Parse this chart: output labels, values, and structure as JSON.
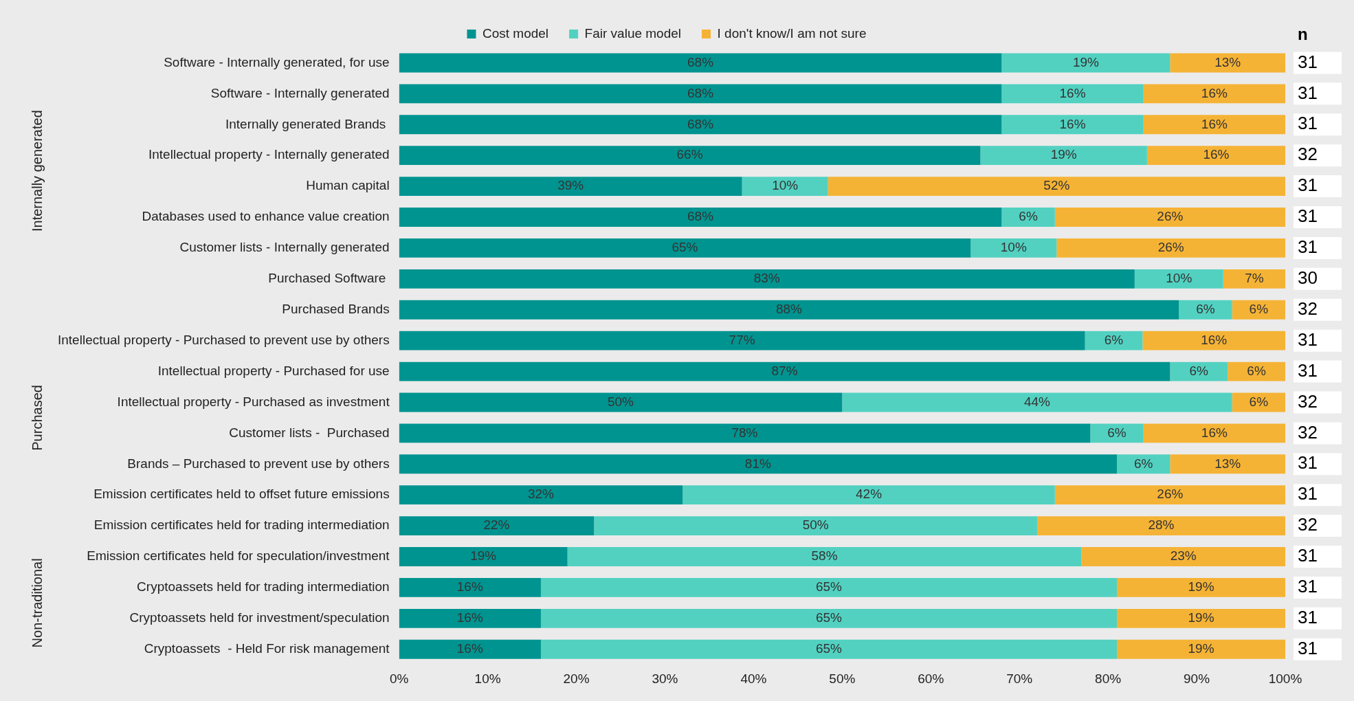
{
  "chart_data": {
    "type": "bar",
    "orientation": "horizontal",
    "stacked": true,
    "legend": "top",
    "grid": false,
    "categories": [
      "Software - Internally generated, for use",
      "Software - Internally generated",
      "Internally generated Brands ",
      "Intellectual property - Internally generated",
      "Human capital",
      "Databases used to enhance value creation",
      "Customer lists - Internally generated",
      "Purchased Software ",
      "Purchased Brands",
      "Intellectual property - Purchased to prevent use by others",
      "Intellectual property - Purchased for use",
      "Intellectual property - Purchased as investment",
      "Customer lists -  Purchased",
      "Brands – Purchased to prevent use by others",
      "Emission certificates held to offset future emissions",
      "Emission certificates held for trading intermediation",
      "Emission certificates held for speculation/investment",
      "Cryptoassets held for trading intermediation",
      "Cryptoassets held for investment/speculation",
      "Cryptoassets  - Held For risk management"
    ],
    "series": [
      {
        "name": "Cost model",
        "color": "#009490",
        "values": [
          68,
          68,
          68,
          65.6,
          38.7,
          68,
          64.5,
          83,
          88,
          77.4,
          87,
          50,
          78,
          81,
          32,
          22,
          19,
          16,
          16,
          16
        ],
        "value_labels": [
          "68%",
          "68%",
          "68%",
          "66%",
          "39%",
          "68%",
          "65%",
          "83%",
          "88%",
          "77%",
          "87%",
          "50%",
          "78%",
          "81%",
          "32%",
          "22%",
          "19%",
          "16%",
          "16%",
          "16%"
        ]
      },
      {
        "name": "Fair value model",
        "color": "#52d1c1",
        "values": [
          19,
          16,
          16,
          18.8,
          9.7,
          6,
          9.7,
          10,
          6,
          6.5,
          6.5,
          44,
          6,
          6,
          42,
          50,
          58,
          65,
          65,
          65
        ],
        "value_labels": [
          "19%",
          "16%",
          "16%",
          "19%",
          "10%",
          "6%",
          "10%",
          "10%",
          "6%",
          "6%",
          "6%",
          "44%",
          "6%",
          "6%",
          "42%",
          "50%",
          "58%",
          "65%",
          "65%",
          "65%"
        ]
      },
      {
        "name": "I don't know/I am not sure",
        "color": "#f5b335",
        "values": [
          13,
          16,
          16,
          15.6,
          51.6,
          26,
          25.8,
          7,
          6,
          16.1,
          6.5,
          6,
          16,
          13,
          26,
          28,
          23,
          19,
          19,
          19
        ],
        "value_labels": [
          "13%",
          "16%",
          "16%",
          "16%",
          "52%",
          "26%",
          "26%",
          "7%",
          "6%",
          "16%",
          "6%",
          "6%",
          "16%",
          "13%",
          "26%",
          "28%",
          "23%",
          "19%",
          "19%",
          "19%"
        ]
      }
    ],
    "xlim": [
      0,
      100
    ],
    "xticks": [
      {
        "value": 0,
        "label": "0%"
      },
      {
        "value": 10,
        "label": "10%"
      },
      {
        "value": 20,
        "label": "20%"
      },
      {
        "value": 30,
        "label": "30%"
      },
      {
        "value": 40,
        "label": "40%"
      },
      {
        "value": 50,
        "label": "50%"
      },
      {
        "value": 60,
        "label": "60%"
      },
      {
        "value": 70,
        "label": "70%"
      },
      {
        "value": 80,
        "label": "80%"
      },
      {
        "value": 90,
        "label": "90%"
      },
      {
        "value": 100,
        "label": "100%"
      }
    ],
    "annotations": [
      "n",
      "31",
      "31",
      "31",
      "32",
      "31",
      "31",
      "31",
      "30",
      "32",
      "31",
      "31",
      "32",
      "32",
      "31",
      "31",
      "32",
      "31",
      "31",
      "31",
      "31",
      "Internally generated",
      "Purchased",
      "Non-traditional"
    ]
  }
}
